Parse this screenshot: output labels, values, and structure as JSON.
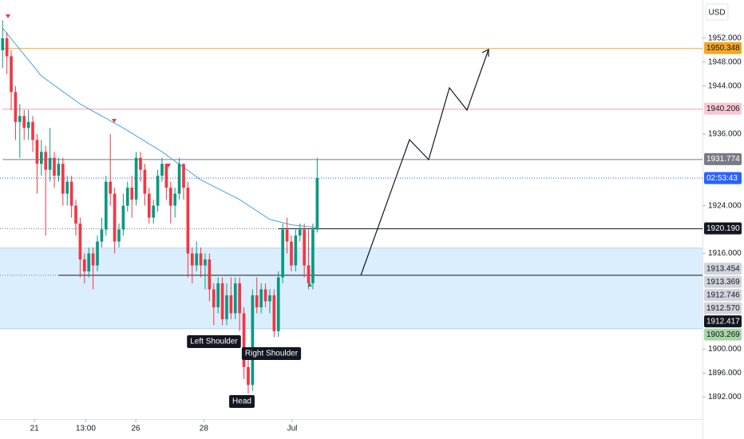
{
  "chart_data": {
    "type": "candlestick",
    "currency": "USD",
    "up_color": "#089981",
    "down_color": "#f23645",
    "open": [
      1950,
      1952,
      1949,
      1943,
      1938,
      1939,
      1937,
      1938,
      1935,
      1931,
      1933,
      1930,
      1932,
      1929,
      1931,
      1926,
      1928,
      1924,
      1921,
      1915,
      1913,
      1916,
      1914,
      1918,
      1920,
      1928,
      1926,
      1918,
      1920,
      1924,
      1927,
      1925,
      1932,
      1930,
      1926,
      1922,
      1924,
      1929,
      1931,
      1927,
      1924,
      1926,
      1931,
      1927,
      1916,
      1914,
      1916,
      1914,
      1915,
      1910,
      1907,
      1911,
      1905,
      1909,
      1906,
      1911,
      1906,
      1897,
      1894,
      1909,
      1907,
      1910,
      1908,
      1909,
      1903,
      1912,
      1920,
      1918,
      1914,
      1919,
      1920,
      1914,
      1911,
      1920
    ],
    "high": [
      1955,
      1953,
      1950,
      1944,
      1941,
      1940,
      1940,
      1939,
      1936,
      1935,
      1934,
      1937,
      1933,
      1932,
      1932,
      1929,
      1929,
      1925,
      1922,
      1916,
      1917,
      1917,
      1919,
      1922,
      1929,
      1936,
      1927,
      1921,
      1926,
      1928,
      1929,
      1933,
      1933,
      1931,
      1927,
      1925,
      1930,
      1932,
      1931,
      1928,
      1927,
      1932,
      1931,
      1928,
      1917,
      1918,
      1917,
      1916,
      1916,
      1911,
      1912,
      1912,
      1911,
      1912,
      1912,
      1912,
      1907,
      1899,
      1910,
      1912,
      1911,
      1911,
      1910,
      1910,
      1913,
      1921,
      1922,
      1919,
      1920,
      1921,
      1921,
      1920,
      1921,
      1932
    ],
    "low": [
      1947,
      1946,
      1940,
      1935,
      1932,
      1935,
      1935,
      1933,
      1926,
      1929,
      1919,
      1928,
      1927,
      1928,
      1924,
      1924,
      1922,
      1919,
      1912,
      1911,
      1912,
      1910,
      1913,
      1917,
      1919,
      1924,
      1916,
      1917,
      1919,
      1923,
      1922,
      1924,
      1928,
      1924,
      1921,
      1921,
      1923,
      1928,
      1925,
      1921,
      1922,
      1925,
      1925,
      1912,
      1911,
      1913,
      1912,
      1910,
      1908,
      1904,
      1906,
      1904,
      1904,
      1905,
      1905,
      1903,
      1895,
      1892.5,
      1893,
      1906,
      1906,
      1907,
      1906,
      1902,
      1902,
      1911,
      1916,
      1913,
      1913,
      1918,
      1912,
      1910,
      1910,
      1919.5
    ],
    "close": [
      1952,
      1949,
      1943,
      1938,
      1939,
      1937,
      1938,
      1935,
      1931,
      1933,
      1930,
      1932,
      1929,
      1931,
      1926,
      1928,
      1924,
      1921,
      1915,
      1913,
      1916,
      1914,
      1918,
      1920,
      1928,
      1926,
      1918,
      1920,
      1924,
      1927,
      1925,
      1932,
      1930,
      1926,
      1922,
      1924,
      1929,
      1931,
      1927,
      1924,
      1926,
      1931,
      1927,
      1916,
      1914,
      1916,
      1914,
      1915,
      1910,
      1907,
      1911,
      1905,
      1909,
      1906,
      1911,
      1906,
      1897,
      1894,
      1909,
      1907,
      1910,
      1908,
      1909,
      1903,
      1912,
      1920,
      1918,
      1914,
      1919,
      1920,
      1914,
      1911,
      1920,
      1928.6
    ],
    "ma": {
      "color": "#4da3e0",
      "x": [
        0,
        9,
        18,
        28,
        37,
        46,
        55,
        62,
        67,
        73
      ],
      "values": [
        1953.7,
        1945.7,
        1941,
        1937,
        1933,
        1928.3,
        1925,
        1921.7,
        1920.8,
        1920.3
      ]
    },
    "zone": {
      "low": 1903.4,
      "high": 1916.9,
      "color": "#2196f3"
    },
    "countdown": "02:53:43",
    "levels": [
      {
        "price": 1950.348,
        "color": "#f5a623",
        "text_color": "#131722",
        "from": 0
      },
      {
        "price": 1940.206,
        "color": "#f8c8d4",
        "text_color": "#131722",
        "from": 0
      },
      {
        "price": 1931.774,
        "color": "#787b86",
        "text_color": "#ffffff",
        "from": 0
      },
      {
        "price": 1920.19,
        "label": "1920.190",
        "color": "#131722",
        "text_color": "#ffffff",
        "from": 64
      },
      {
        "price": 1913.454,
        "color": "#d1d4dc",
        "text_color": "#131722"
      },
      {
        "price": 1913.369,
        "color": "#d1d4dc",
        "text_color": "#131722"
      },
      {
        "price": 1912.746,
        "color": "#d1d4dc",
        "text_color": "#131722"
      },
      {
        "price": 1912.57,
        "label": "1912.570",
        "color": "#d1d4dc",
        "text_color": "#131722"
      },
      {
        "price": 1912.417,
        "color": "#131722",
        "text_color": "#ffffff",
        "from": 13
      },
      {
        "price": 1903.269,
        "color": "#a5d6a7",
        "text_color": "#131722"
      }
    ],
    "annotations": [
      "Left Shoulder",
      "Right Shoulder",
      "Head"
    ],
    "xlim": [
      -0.6,
      162.4
    ],
    "xticks": [
      {
        "value": 7.4,
        "label": "21"
      },
      {
        "value": 19.3,
        "label": "13:00"
      },
      {
        "value": 30.9,
        "label": "26"
      },
      {
        "value": 46.7,
        "label": "28"
      },
      {
        "value": 67.2,
        "label": "Jul"
      }
    ],
    "ylim": [
      1888.3,
      1958.4
    ],
    "yticks": [
      {
        "value": 1952,
        "label": "1952.000"
      },
      {
        "value": 1948,
        "label": "1948.000"
      },
      {
        "value": 1944,
        "label": "1944.000"
      },
      {
        "value": 1936,
        "label": "1936.000"
      },
      {
        "value": 1924,
        "label": "1924.000"
      },
      {
        "value": 1916,
        "label": "1916.000"
      },
      {
        "value": 1900,
        "label": "1900.000"
      },
      {
        "value": 1896,
        "label": "1896.000"
      },
      {
        "value": 1892,
        "label": "1892.000"
      }
    ]
  }
}
